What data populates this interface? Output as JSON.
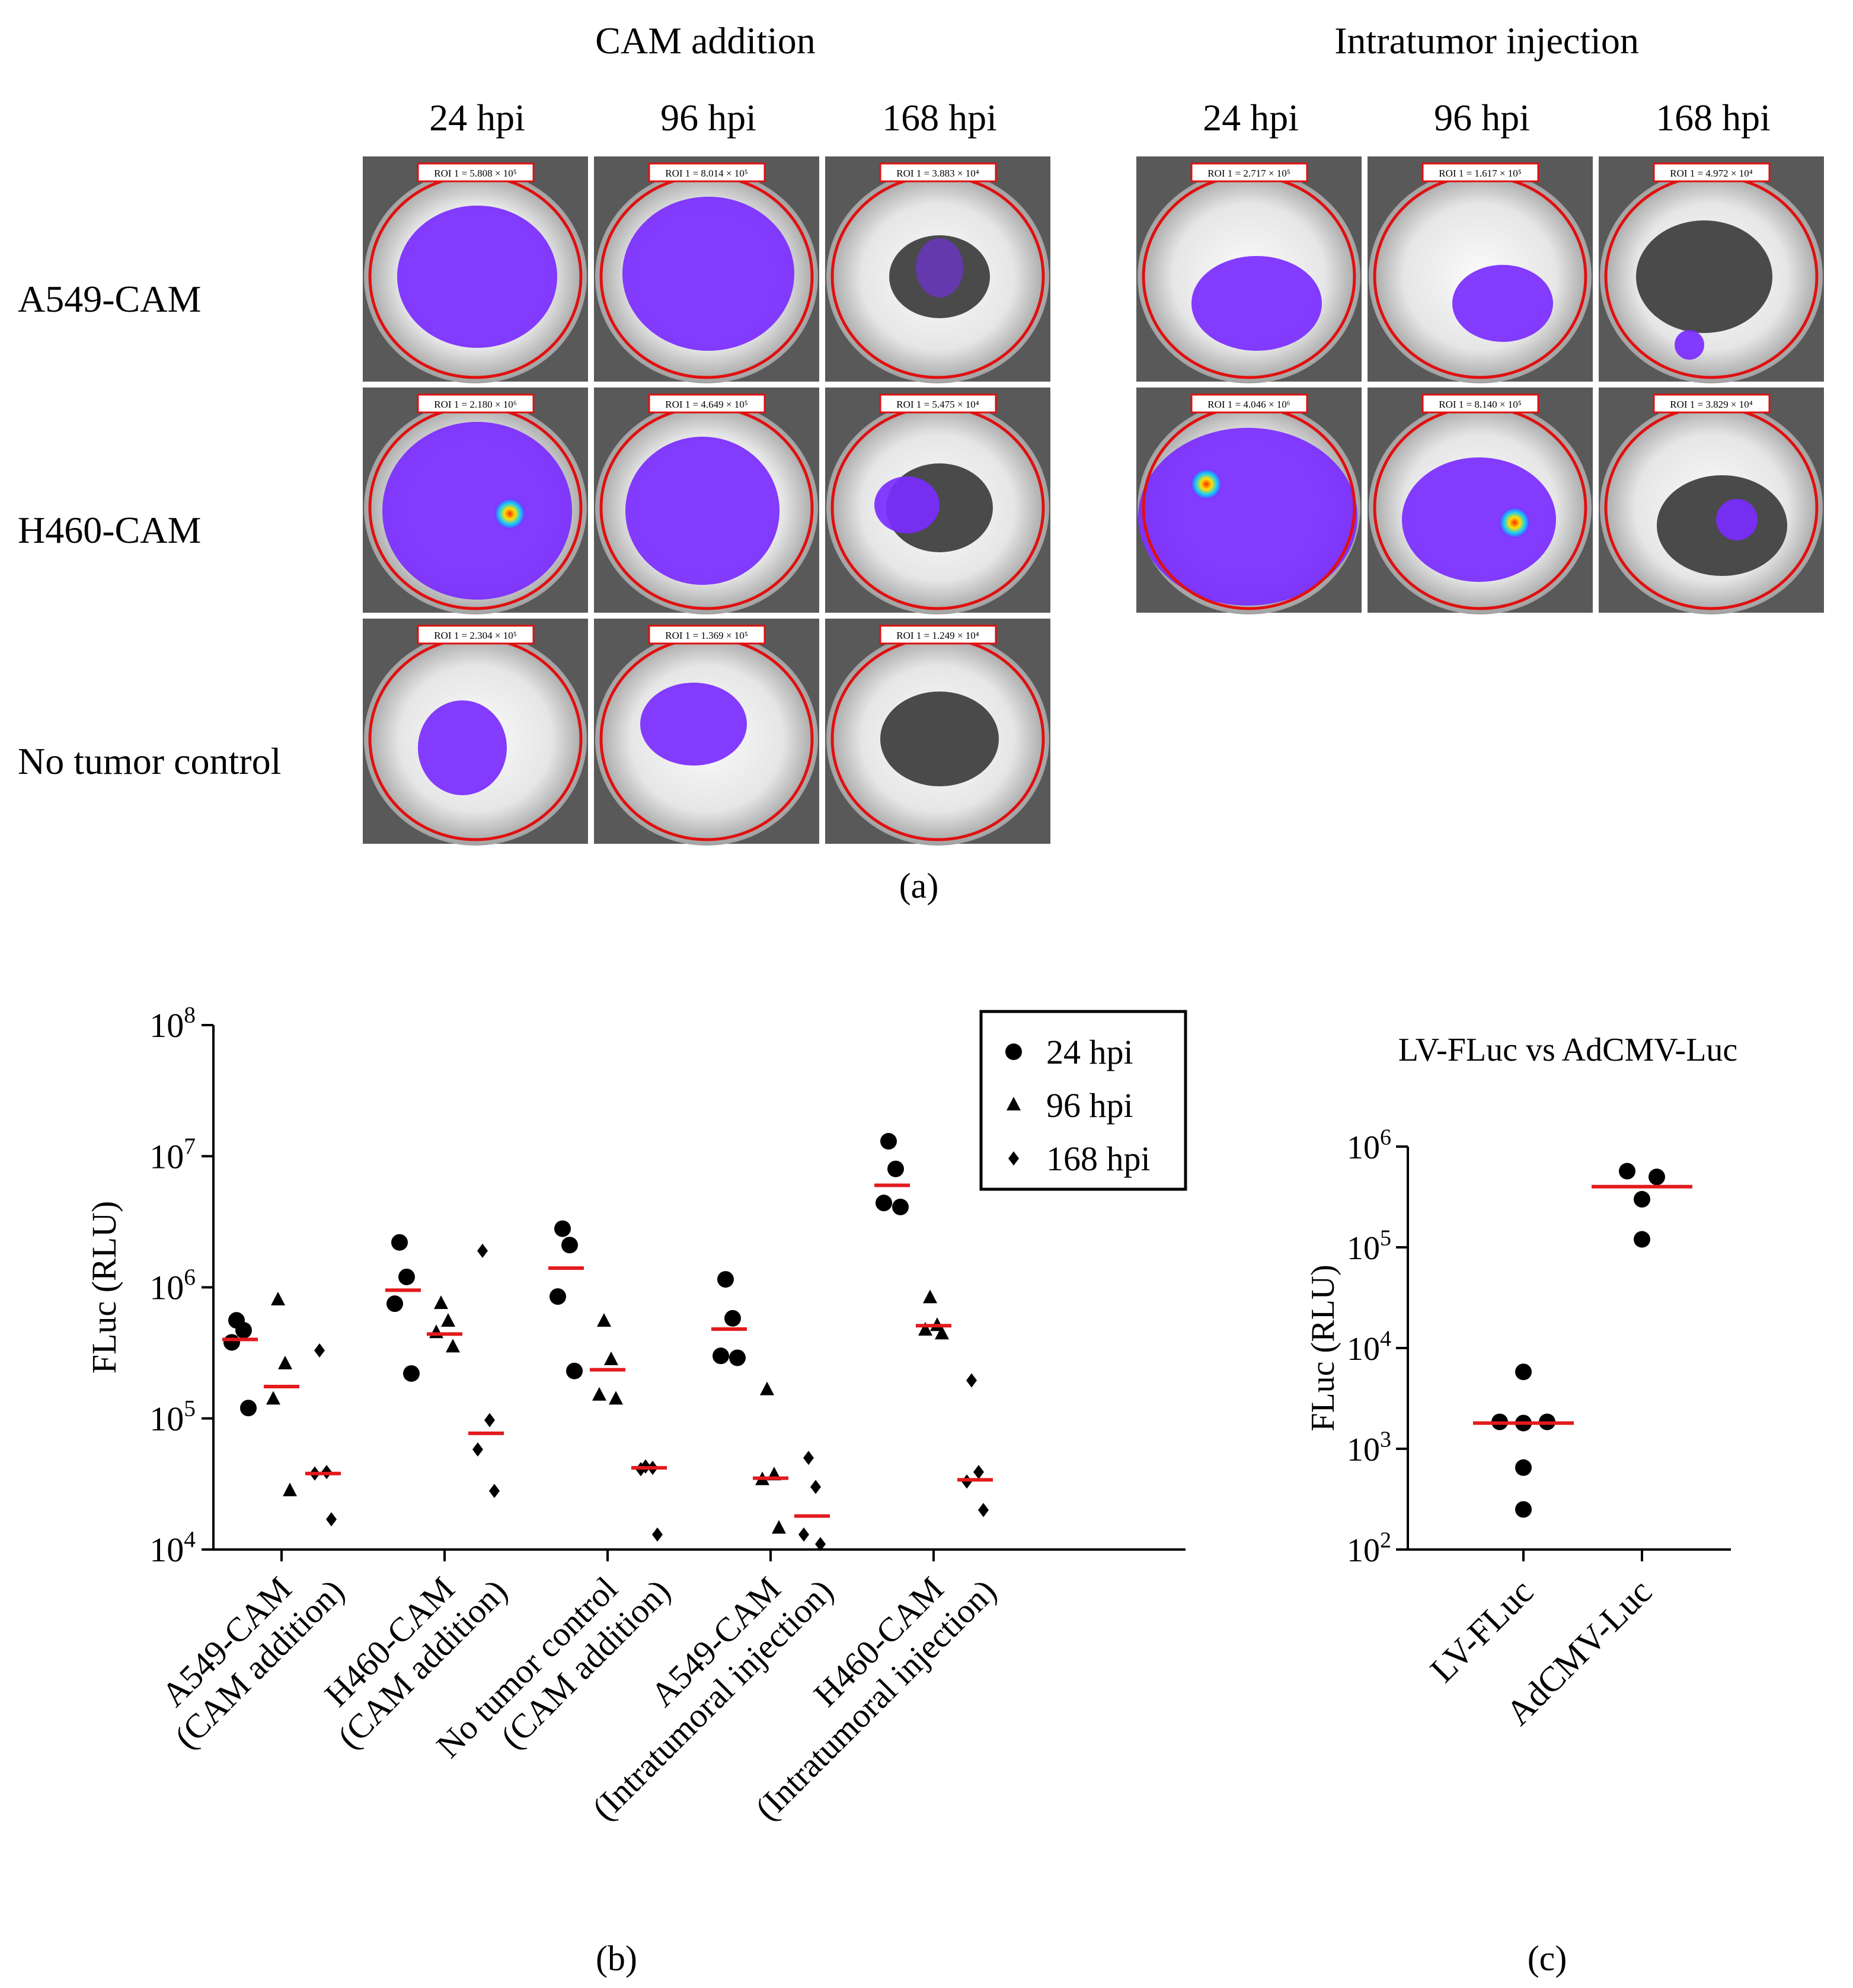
{
  "panel_a": {
    "label": "(a)",
    "group_titles": [
      "CAM addition",
      "Intratumor injection"
    ],
    "time_labels": [
      "24 hpi",
      "96 hpi",
      "168 hpi"
    ],
    "row_labels": [
      "A549-CAM",
      "H460-CAM",
      "No tumor control"
    ],
    "roi_labels": {
      "cam_addition": [
        [
          "ROI 1 = 5.808 × 10⁵",
          "ROI 1 = 8.014 × 10⁵",
          "ROI 1 = 3.883 × 10⁴"
        ],
        [
          "ROI 1 = 2.180 × 10⁶",
          "ROI 1 = 4.649 × 10⁵",
          "ROI 1 = 5.475 × 10⁴"
        ],
        [
          "ROI 1 = 2.304 × 10⁵",
          "ROI 1 = 1.369 × 10⁵",
          "ROI 1 = 1.249 × 10⁴"
        ]
      ],
      "intratumor_injection": [
        [
          "ROI 1 = 2.717 × 10⁵",
          "ROI 1 = 1.617 × 10⁵",
          "ROI 1 = 4.972 × 10⁴"
        ],
        [
          "ROI 1 = 4.046 × 10⁶",
          "ROI 1 = 8.140 × 10⁵",
          "ROI 1 = 3.829 × 10⁴"
        ]
      ]
    },
    "colors": {
      "signal": "#7a2bff",
      "roi_circle": "#e01010",
      "hot": "#ffe000"
    }
  },
  "chart_data": [
    {
      "id": "b",
      "label": "(b)",
      "type": "scatter",
      "scale": "log10",
      "ylabel": "FLuc (RLU)",
      "ylim": [
        10000,
        100000000
      ],
      "yticks": [
        {
          "value": 10000,
          "label_base": "10",
          "label_exp": "4"
        },
        {
          "value": 100000,
          "label_base": "10",
          "label_exp": "5"
        },
        {
          "value": 1000000,
          "label_base": "10",
          "label_exp": "6"
        },
        {
          "value": 10000000,
          "label_base": "10",
          "label_exp": "7"
        },
        {
          "value": 100000000,
          "label_base": "10",
          "label_exp": "8"
        }
      ],
      "legend": {
        "position": "top-right",
        "items": [
          {
            "symbol": "circle",
            "label": "24 hpi"
          },
          {
            "symbol": "triangle",
            "label": "96 hpi"
          },
          {
            "symbol": "diamond",
            "label": "168 hpi"
          }
        ]
      },
      "groups": [
        {
          "line1": "A549-CAM",
          "line2": "(CAM addition)",
          "series": [
            {
              "time": "24 hpi",
              "symbol": "circle",
              "values": [
                560000,
                470000,
                380000,
                120000
              ],
              "median": 400000
            },
            {
              "time": "96 hpi",
              "symbol": "triangle",
              "values": [
                800000,
                260000,
                140000,
                28000
              ],
              "median": 175000
            },
            {
              "time": "168 hpi",
              "symbol": "diamond",
              "values": [
                330000,
                39000,
                38000,
                17000
              ],
              "median": 38000
            }
          ]
        },
        {
          "line1": "H460-CAM",
          "line2": "(CAM addition)",
          "series": [
            {
              "time": "24 hpi",
              "symbol": "circle",
              "values": [
                2200000,
                1200000,
                750000,
                220000
              ],
              "median": 950000
            },
            {
              "time": "96 hpi",
              "symbol": "triangle",
              "values": [
                750000,
                550000,
                450000,
                350000
              ],
              "median": 440000
            },
            {
              "time": "168 hpi",
              "symbol": "diamond",
              "values": [
                1900000,
                97000,
                58000,
                28000
              ],
              "median": 77000
            }
          ]
        },
        {
          "line1": "No tumor control",
          "line2": "(CAM addition)",
          "series": [
            {
              "time": "24 hpi",
              "symbol": "circle",
              "values": [
                2800000,
                2100000,
                850000,
                230000
              ],
              "median": 1400000
            },
            {
              "time": "96 hpi",
              "symbol": "triangle",
              "values": [
                550000,
                280000,
                150000,
                140000
              ],
              "median": 235000
            },
            {
              "time": "168 hpi",
              "symbol": "diamond",
              "values": [
                43000,
                42000,
                41000,
                13000
              ],
              "median": 42000
            }
          ]
        },
        {
          "line1": "A549-CAM",
          "line2": "(Intratumoral injection)",
          "series": [
            {
              "time": "24 hpi",
              "symbol": "circle",
              "values": [
                1150000,
                580000,
                300000,
                290000
              ],
              "median": 480000
            },
            {
              "time": "96 hpi",
              "symbol": "triangle",
              "values": [
                165000,
                37000,
                34000,
                14500
              ],
              "median": 35000
            },
            {
              "time": "168 hpi",
              "symbol": "diamond",
              "values": [
                50000,
                30000,
                13000,
                11000
              ],
              "median": 18000
            }
          ]
        },
        {
          "line1": "H460-CAM",
          "line2": "(Intratumoral injection)",
          "series": [
            {
              "time": "24 hpi",
              "symbol": "circle",
              "values": [
                13000000,
                8000000,
                4400000,
                4100000
              ],
              "median": 6000000
            },
            {
              "time": "96 hpi",
              "symbol": "triangle",
              "values": [
                830000,
                510000,
                470000,
                440000
              ],
              "median": 510000
            },
            {
              "time": "168 hpi",
              "symbol": "diamond",
              "values": [
                195000,
                39000,
                33000,
                20000
              ],
              "median": 34000
            }
          ]
        }
      ]
    },
    {
      "id": "c",
      "label": "(c)",
      "type": "scatter",
      "scale": "log10",
      "title": "LV-FLuc  vs AdCMV-Luc",
      "ylabel": "FLuc (RLU)",
      "ylim": [
        100,
        1000000
      ],
      "yticks": [
        {
          "value": 100,
          "label_base": "10",
          "label_exp": "2"
        },
        {
          "value": 1000,
          "label_base": "10",
          "label_exp": "3"
        },
        {
          "value": 10000,
          "label_base": "10",
          "label_exp": "4"
        },
        {
          "value": 100000,
          "label_base": "10",
          "label_exp": "5"
        },
        {
          "value": 1000000,
          "label_base": "10",
          "label_exp": "6"
        }
      ],
      "categories": [
        "LV-FLuc",
        "AdCMV-Luc"
      ],
      "series": [
        {
          "name": "LV-FLuc",
          "values": [
            5800,
            1850,
            1800,
            1850,
            650,
            250
          ],
          "median": 1800
        },
        {
          "name": "AdCMV-Luc",
          "values": [
            570000,
            500000,
            300000,
            120000
          ],
          "median": 400000
        }
      ]
    }
  ]
}
